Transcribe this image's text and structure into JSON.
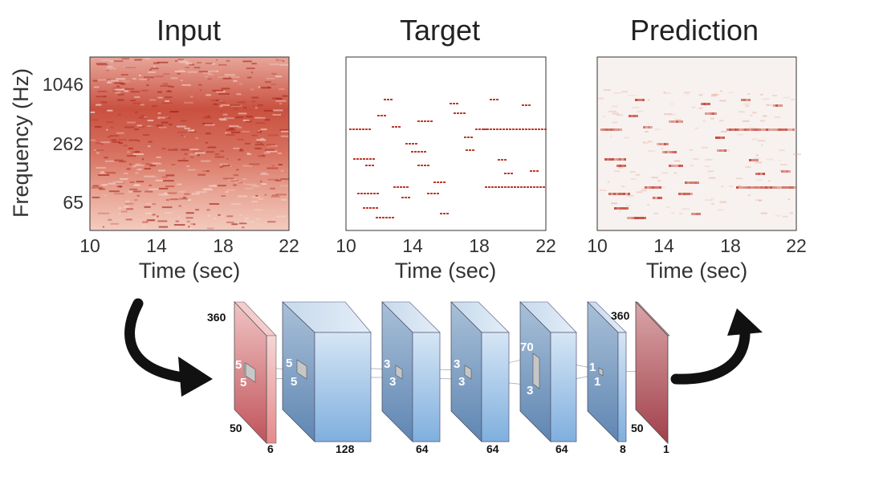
{
  "panels": [
    {
      "title": "Input",
      "name": "input"
    },
    {
      "title": "Target",
      "name": "target"
    },
    {
      "title": "Prediction",
      "name": "prediction"
    }
  ],
  "axes": {
    "xlabel": "Time (sec)",
    "ylabel": "Frequency (Hz)",
    "xticks": [
      "10",
      "14",
      "18",
      "22"
    ],
    "yticks": [
      "1046",
      "262",
      "65"
    ]
  },
  "network": {
    "input_top": "360",
    "input_bottom": "50",
    "input_depth": "6",
    "layers": [
      {
        "kernel_h": "5",
        "kernel_w": "5",
        "depth": "128"
      },
      {
        "kernel_h": "3",
        "kernel_w": "3",
        "depth": "64"
      },
      {
        "kernel_h": "3",
        "kernel_w": "3",
        "depth": "64"
      },
      {
        "kernel_h": "70",
        "kernel_w": "3",
        "depth": "64"
      },
      {
        "kernel_h": "1",
        "kernel_w": "1",
        "depth": "8"
      }
    ],
    "input_kernel_h": "5",
    "input_kernel_w": "5",
    "output_top": "360",
    "output_bottom": "50",
    "output_depth": "1"
  },
  "colors": {
    "spectrogram": "#c0392b",
    "target_notes": "#c0392b",
    "layer_blue": "#8fb6dc",
    "input_slab": "#d06a6a",
    "output_slab": "#a84b55"
  }
}
